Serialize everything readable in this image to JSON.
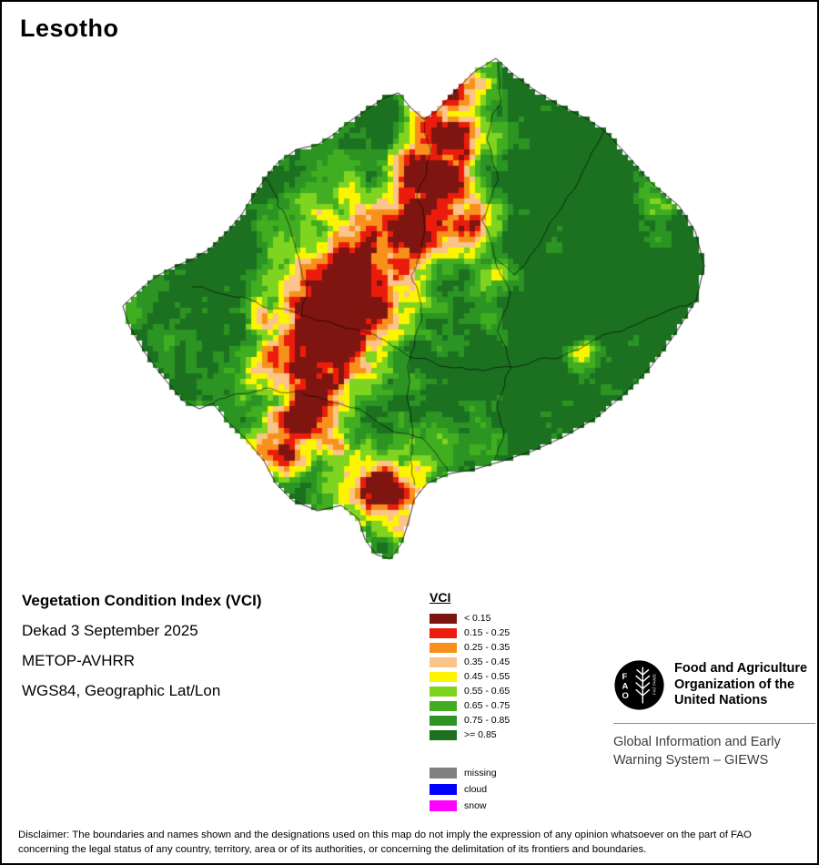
{
  "title": "Lesotho",
  "info": {
    "product": "Vegetation Condition Index (VCI)",
    "dekad": "Dekad 3 September 2025",
    "sensor": "METOP-AVHRR",
    "projection": "WGS84, Geographic Lat/Lon"
  },
  "legend": {
    "title": "VCI",
    "classes": [
      {
        "label": "< 0.15",
        "color": "#7f1510"
      },
      {
        "label": "0.15 - 0.25",
        "color": "#ec1c0d"
      },
      {
        "label": "0.25 - 0.35",
        "color": "#f8911c"
      },
      {
        "label": "0.35 - 0.45",
        "color": "#fbc489"
      },
      {
        "label": "0.45 - 0.55",
        "color": "#fdf400"
      },
      {
        "label": "0.55 - 0.65",
        "color": "#7fd41f"
      },
      {
        "label": "0.65 - 0.75",
        "color": "#41ad21"
      },
      {
        "label": "0.75 - 0.85",
        "color": "#2b9423"
      },
      {
        "label": ">= 0.85",
        "color": "#1c7120"
      }
    ],
    "extras": [
      {
        "label": "missing",
        "color": "#808080"
      },
      {
        "label": "cloud",
        "color": "#0000fe"
      },
      {
        "label": "snow",
        "color": "#ff00ff"
      }
    ]
  },
  "fao": {
    "logo_letters": [
      "F",
      "A",
      "O"
    ],
    "logo_motto": "FIAT PANIS",
    "org_name": "Food and Agriculture Organization of the United Nations",
    "system_name": "Global Information and Early Warning System – GIEWS"
  },
  "disclaimer": "Disclaimer: The boundaries and names shown and the designations used on this map do not imply the expression of any opinion whatsoever on the part of FAO concerning the legal status of any country, territory, area or of its authorities, or concerning the delimitation of its frontiers and boundaries."
}
